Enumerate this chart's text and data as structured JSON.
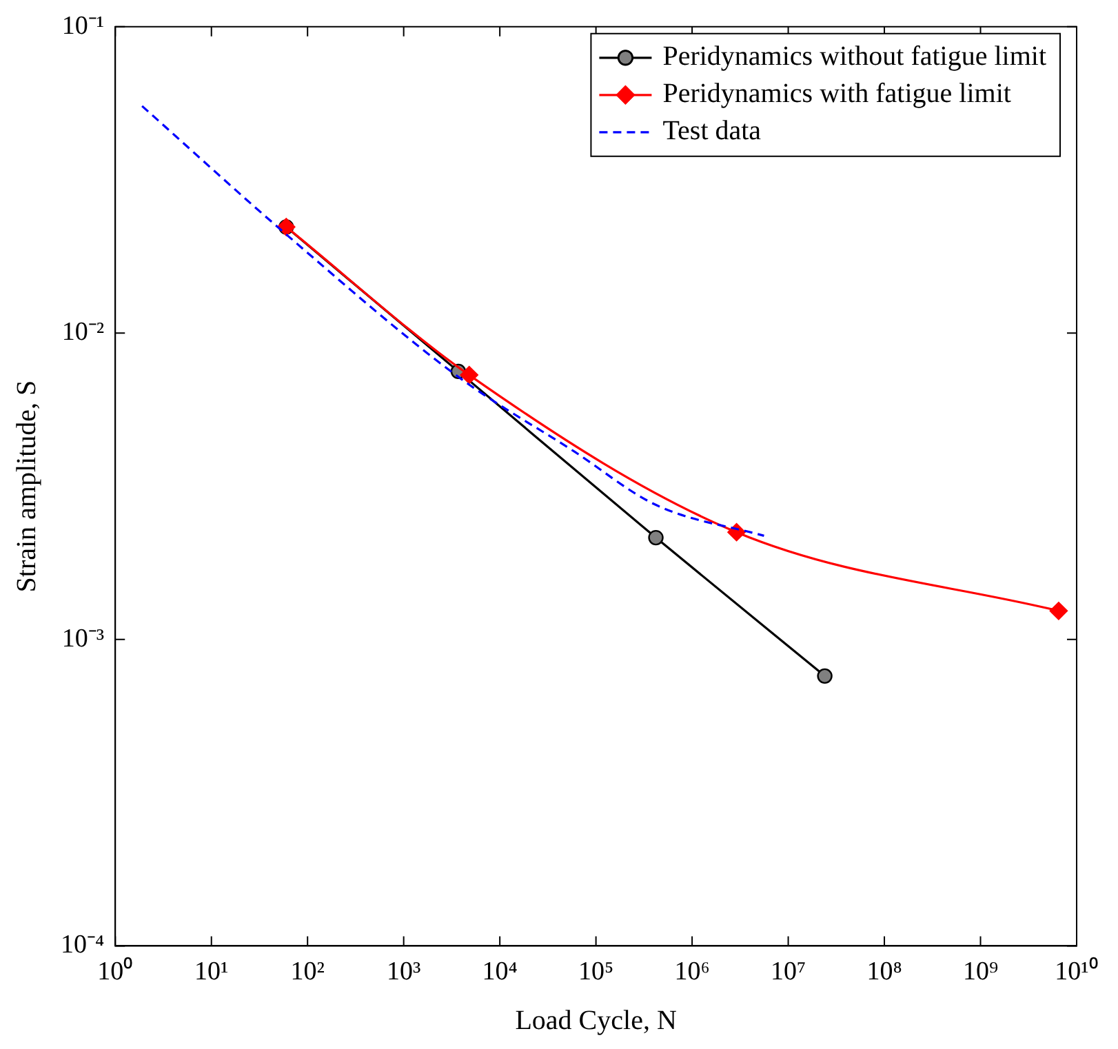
{
  "chart_data": {
    "type": "line",
    "log": "xy",
    "xlabel": "Load Cycle, N",
    "ylabel": "Strain amplitude, S",
    "xlim": [
      1,
      10000000000
    ],
    "ylim": [
      0.0001,
      0.1
    ],
    "xticks": [
      {
        "value": 1,
        "label": "10⁰"
      },
      {
        "value": 10,
        "label": "10¹"
      },
      {
        "value": 100,
        "label": "10²"
      },
      {
        "value": 1000,
        "label": "10³"
      },
      {
        "value": 10000,
        "label": "10⁴"
      },
      {
        "value": 100000,
        "label": "10⁵"
      },
      {
        "value": 1000000,
        "label": "10⁶"
      },
      {
        "value": 10000000,
        "label": "10⁷"
      },
      {
        "value": 100000000,
        "label": "10⁸"
      },
      {
        "value": 1000000000,
        "label": "10⁹"
      },
      {
        "value": 10000000000,
        "label": "10¹⁰"
      }
    ],
    "yticks": [
      {
        "value": 0.0001,
        "label": "10⁻⁴"
      },
      {
        "value": 0.001,
        "label": "10⁻³"
      },
      {
        "value": 0.01,
        "label": "10⁻²"
      },
      {
        "value": 0.1,
        "label": "10⁻¹"
      }
    ],
    "grid": false,
    "legend": "top right",
    "series": [
      {
        "name": "Peridynamics without fatigue limit",
        "color": "#000000",
        "marker": "circle",
        "line_style": "solid",
        "x": [
          60,
          3700,
          420000,
          24000000
        ],
        "values": [
          0.0222,
          0.0075,
          0.00215,
          0.00076
        ]
      },
      {
        "name": "Peridynamics with fatigue limit",
        "color": "#ff0000",
        "marker": "diamond",
        "line_style": "solid",
        "x": [
          60,
          4800,
          2900000,
          6500000000
        ],
        "values": [
          0.0222,
          0.0073,
          0.00224,
          0.00124
        ]
      },
      {
        "name": "Test data",
        "color": "#0000ff",
        "marker": "none",
        "line_style": "dashed",
        "x": [
          1.9,
          60,
          3700,
          60000,
          420000,
          5600000
        ],
        "values": [
          0.0551,
          0.021,
          0.0072,
          0.0041,
          0.00275,
          0.00218
        ]
      }
    ]
  }
}
